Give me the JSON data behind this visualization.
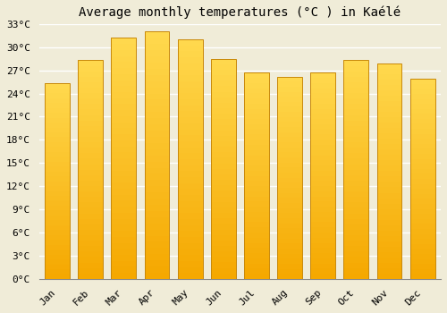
{
  "title": "Average monthly temperatures (°C ) in Kaélé",
  "months": [
    "Jan",
    "Feb",
    "Mar",
    "Apr",
    "May",
    "Jun",
    "Jul",
    "Aug",
    "Sep",
    "Oct",
    "Nov",
    "Dec"
  ],
  "temperatures": [
    25.3,
    28.3,
    31.2,
    32.0,
    31.0,
    28.5,
    26.7,
    26.2,
    26.7,
    28.3,
    27.9,
    25.9
  ],
  "bar_color_bottom": "#F5A800",
  "bar_color_top": "#FFD84D",
  "bar_edge_color": "#C8880A",
  "ylim": [
    0,
    33
  ],
  "ytick_step": 3,
  "background_color": "#F0ECD8",
  "grid_color": "#FFFFFF",
  "title_fontsize": 10,
  "tick_fontsize": 8,
  "font_family": "monospace"
}
